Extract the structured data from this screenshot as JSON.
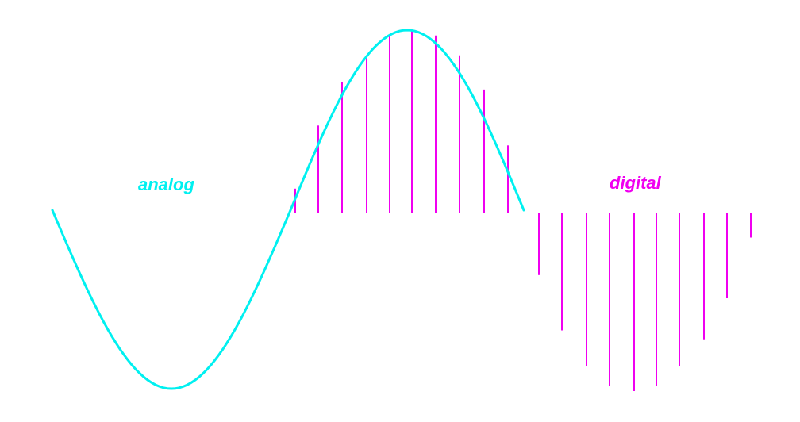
{
  "labels": {
    "analog": "analog",
    "digital": "digital"
  },
  "colors": {
    "analog": "#00f0f0",
    "digital": "#f000f0",
    "background": "#ffffff"
  },
  "waveform": {
    "shape": "sine",
    "phase_start_deg": 180,
    "phase_end_deg": 360,
    "cycles_analog": 1.0,
    "cycles_sampled_in_analog": 0.5
  },
  "samples": {
    "upper_half_count": 10,
    "lower_half_count": 10,
    "relative_amplitudes_upper": [
      0.12,
      0.47,
      0.71,
      0.86,
      0.97,
      1.0,
      0.97,
      0.86,
      0.67,
      0.36
    ],
    "relative_amplitudes_lower": [
      0.35,
      0.66,
      0.86,
      0.97,
      1.0,
      0.97,
      0.86,
      0.71,
      0.48,
      0.14
    ]
  }
}
